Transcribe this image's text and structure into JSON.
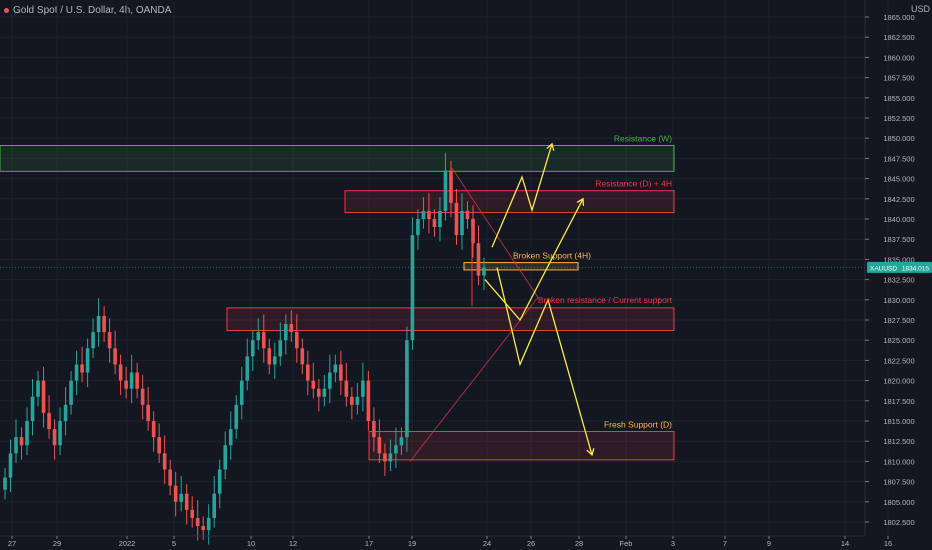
{
  "header": {
    "title": "Gold Spot / U.S. Dollar, 4h, OANDA"
  },
  "axis": {
    "currency": "USD"
  },
  "colors": {
    "background": "#131722",
    "up": "#26a69a",
    "down": "#ef5350",
    "grid": "#1e222d",
    "axis_text": "#b2b5be",
    "zone_green": "#4caf50",
    "zone_red": "#f23645",
    "arrow": "#ffeb3b",
    "label_orange": "#ffb74d"
  },
  "chart_data": {
    "type": "candlestick",
    "title": "Gold Spot / U.S. Dollar, 4h, OANDA",
    "ylabel": "USD",
    "ylim": [
      1801.0,
      1866.5
    ],
    "y_ticks": [
      "1865.000",
      "1862.500",
      "1860.000",
      "1857.500",
      "1855.000",
      "1852.500",
      "1850.000",
      "1847.500",
      "1845.000",
      "1842.500",
      "1840.000",
      "1837.500",
      "1835.000",
      "1832.500",
      "1830.000",
      "1827.500",
      "1825.000",
      "1822.500",
      "1820.000",
      "1817.500",
      "1815.000",
      "1812.500",
      "1810.000",
      "1807.500",
      "1805.000",
      "1802.500"
    ],
    "x_ticks": [
      "27",
      "29",
      "2022",
      "5",
      "10",
      "12",
      "17",
      "19",
      "24",
      "26",
      "28",
      "Feb",
      "3",
      "7",
      "9",
      "14",
      "16"
    ],
    "current_price": {
      "symbol": "XAUUSD",
      "value": "1834.015"
    },
    "zones": [
      {
        "label": "Resistance (W)",
        "low": 1845.9,
        "high": 1849.1,
        "color": "#4caf50"
      },
      {
        "label": "Resistance (D) + 4H",
        "low": 1840.8,
        "high": 1843.5,
        "color": "#f23645"
      },
      {
        "label": "Broken Support (4H)",
        "low": 1833.7,
        "high": 1834.6,
        "color": "#ffb74d"
      },
      {
        "label": "Broken resistance / Current support",
        "low": 1826.2,
        "high": 1829.0,
        "color": "#f23645"
      },
      {
        "label": "Fresh Support (D)",
        "low": 1810.2,
        "high": 1813.7,
        "color": "#f23645"
      }
    ],
    "candles_summary": {
      "from": "27",
      "to": "24",
      "low_visible": 1801.5,
      "high_visible": 1848.0,
      "closes": [
        1808,
        1811,
        1813,
        1812,
        1815,
        1818,
        1820,
        1816,
        1814,
        1812,
        1815,
        1817,
        1820,
        1822,
        1821,
        1824,
        1826,
        1828,
        1826,
        1824,
        1822,
        1820,
        1819,
        1821,
        1819,
        1817,
        1815,
        1813,
        1811,
        1809,
        1807,
        1805,
        1806,
        1804,
        1803,
        1802,
        1801.5,
        1803,
        1806,
        1809,
        1812,
        1814,
        1817,
        1820,
        1823,
        1825,
        1826,
        1824,
        1822,
        1823,
        1825,
        1827,
        1826,
        1824,
        1822,
        1820,
        1819,
        1818,
        1819,
        1821,
        1822,
        1820,
        1818,
        1817,
        1818,
        1820,
        1815,
        1813,
        1811,
        1810,
        1811,
        1812,
        1813,
        1825,
        1838,
        1840,
        1841,
        1840,
        1839,
        1841,
        1846,
        1842,
        1838,
        1841,
        1840,
        1837,
        1833,
        1834
      ]
    }
  }
}
